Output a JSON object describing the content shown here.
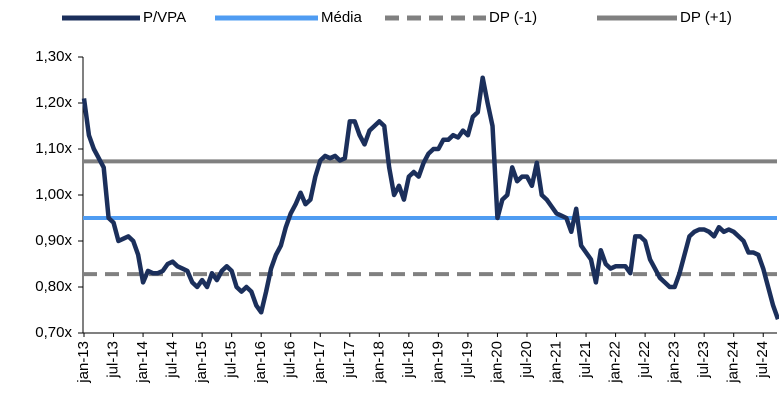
{
  "chart_data": {
    "type": "line",
    "categories": [
      "jan-13",
      null,
      null,
      null,
      null,
      null,
      "jul-13",
      null,
      null,
      null,
      null,
      null,
      "jan-14",
      null,
      null,
      null,
      null,
      null,
      "jul-14",
      null,
      null,
      null,
      null,
      null,
      "jan-15",
      null,
      null,
      null,
      null,
      null,
      "jul-15",
      null,
      null,
      null,
      null,
      null,
      "jan-16",
      null,
      null,
      null,
      null,
      null,
      "jul-16",
      null,
      null,
      null,
      null,
      null,
      "jan-17",
      null,
      null,
      null,
      null,
      null,
      "jul-17",
      null,
      null,
      null,
      null,
      null,
      "jan-18",
      null,
      null,
      null,
      null,
      null,
      "jul-18",
      null,
      null,
      null,
      null,
      null,
      "jan-19",
      null,
      null,
      null,
      null,
      null,
      "jul-19",
      null,
      null,
      null,
      null,
      null,
      "jan-20",
      null,
      null,
      null,
      null,
      null,
      "jul-20",
      null,
      null,
      null,
      null,
      null,
      "jan-21",
      null,
      null,
      null,
      null,
      null,
      "jul-21",
      null,
      null,
      null,
      null,
      null,
      "jan-22",
      null,
      null,
      null,
      null,
      null,
      "jul-22",
      null,
      null,
      null,
      null,
      null,
      "jan-23",
      null,
      null,
      null,
      null,
      null,
      "jul-23",
      null,
      null,
      null,
      null,
      null,
      "jan-24",
      null,
      null,
      null,
      null,
      null,
      "jul-24",
      null,
      null,
      null
    ],
    "series": [
      {
        "name": "P/VPA",
        "color": "#1b2f5b",
        "values": [
          1.21,
          1.13,
          1.1,
          1.08,
          1.06,
          0.95,
          0.94,
          0.9,
          0.905,
          0.91,
          0.9,
          0.87,
          0.81,
          0.835,
          0.83,
          0.83,
          0.835,
          0.85,
          0.855,
          0.845,
          0.84,
          0.835,
          0.81,
          0.8,
          0.815,
          0.8,
          0.83,
          0.815,
          0.835,
          0.845,
          0.835,
          0.8,
          0.79,
          0.8,
          0.79,
          0.76,
          0.745,
          0.79,
          0.84,
          0.87,
          0.89,
          0.93,
          0.96,
          0.98,
          1.005,
          0.98,
          0.99,
          1.04,
          1.075,
          1.085,
          1.08,
          1.085,
          1.075,
          1.08,
          1.16,
          1.16,
          1.13,
          1.11,
          1.14,
          1.15,
          1.16,
          1.15,
          1.06,
          1.0,
          1.02,
          0.99,
          1.04,
          1.05,
          1.04,
          1.07,
          1.09,
          1.1,
          1.1,
          1.12,
          1.12,
          1.13,
          1.125,
          1.14,
          1.13,
          1.17,
          1.18,
          1.255,
          1.2,
          1.15,
          0.95,
          0.99,
          1.0,
          1.06,
          1.03,
          1.04,
          1.04,
          1.02,
          1.07,
          1.0,
          0.99,
          0.975,
          0.96,
          0.955,
          0.95,
          0.92,
          0.97,
          0.89,
          0.875,
          0.86,
          0.81,
          0.88,
          0.85,
          0.84,
          0.845,
          0.845,
          0.845,
          0.83,
          0.91,
          0.91,
          0.9,
          0.86,
          0.84,
          0.82,
          0.81,
          0.8,
          0.8,
          0.83,
          0.87,
          0.91,
          0.92,
          0.925,
          0.925,
          0.92,
          0.91,
          0.93,
          0.92,
          0.925,
          0.92,
          0.91,
          0.9,
          0.875,
          0.875,
          0.87,
          0.84,
          0.8,
          0.76,
          0.73
        ]
      }
    ],
    "reference_lines": [
      {
        "name": "Média",
        "color": "#4f9cf2",
        "value": 0.95,
        "dashed": false
      },
      {
        "name": "DP (-1)",
        "color": "#808080",
        "value": 0.828,
        "dashed": true
      },
      {
        "name": "DP (+1)",
        "color": "#808080",
        "value": 1.073,
        "dashed": false
      }
    ],
    "ylim": [
      0.7,
      1.3
    ],
    "yticks": [
      {
        "value": 0.7,
        "label": "0,70x"
      },
      {
        "value": 0.8,
        "label": "0,80x"
      },
      {
        "value": 0.9,
        "label": "0,90x"
      },
      {
        "value": 1.0,
        "label": "1,00x"
      },
      {
        "value": 1.1,
        "label": "1,10x"
      },
      {
        "value": 1.2,
        "label": "1,20x"
      },
      {
        "value": 1.3,
        "label": "1,30x"
      }
    ],
    "grid": false
  }
}
